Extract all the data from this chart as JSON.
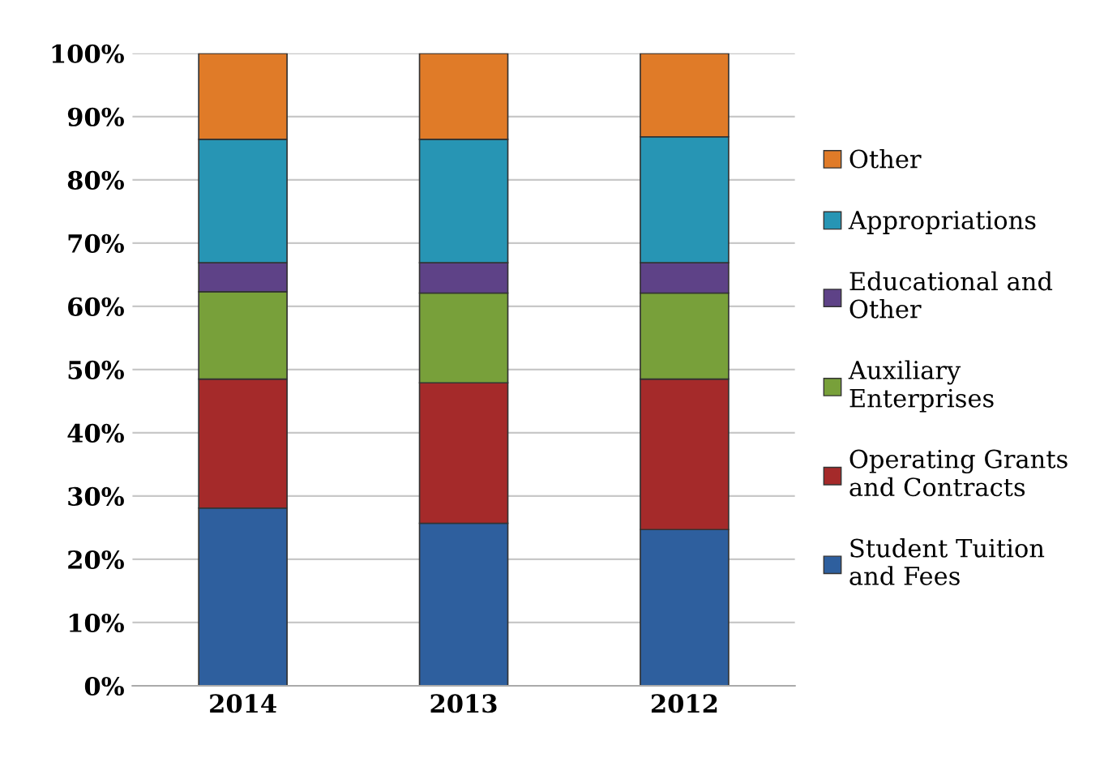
{
  "chart_data": {
    "type": "bar",
    "stacked": true,
    "categories": [
      "2014",
      "2013",
      "2012"
    ],
    "series": [
      {
        "name": "Student Tuition\nand Fees",
        "color": "#2e5f9e",
        "values": [
          28.1,
          25.7,
          24.7
        ]
      },
      {
        "name": "Operating Grants\nand Contracts",
        "color": "#a52a2a",
        "values": [
          20.4,
          22.2,
          23.8
        ]
      },
      {
        "name": "Auxiliary\nEnterprises",
        "color": "#78a03a",
        "values": [
          13.8,
          14.2,
          13.6
        ]
      },
      {
        "name": "Educational and\nOther",
        "color": "#5e4287",
        "values": [
          4.6,
          4.8,
          4.8
        ]
      },
      {
        "name": "Appropriations",
        "color": "#2795b4",
        "values": [
          19.5,
          19.5,
          19.9
        ]
      },
      {
        "name": "Other",
        "color": "#e07b28",
        "values": [
          13.6,
          13.6,
          13.2
        ]
      }
    ],
    "ylim": [
      0,
      100
    ],
    "yticks": [
      {
        "value": 0,
        "label": "0%"
      },
      {
        "value": 10,
        "label": "10%"
      },
      {
        "value": 20,
        "label": "20%"
      },
      {
        "value": 30,
        "label": "30%"
      },
      {
        "value": 40,
        "label": "40%"
      },
      {
        "value": 50,
        "label": "50%"
      },
      {
        "value": 60,
        "label": "60%"
      },
      {
        "value": 70,
        "label": "70%"
      },
      {
        "value": 80,
        "label": "80%"
      },
      {
        "value": 90,
        "label": "90%"
      },
      {
        "value": 100,
        "label": "100%"
      }
    ],
    "grid": "y",
    "legend": "right"
  }
}
